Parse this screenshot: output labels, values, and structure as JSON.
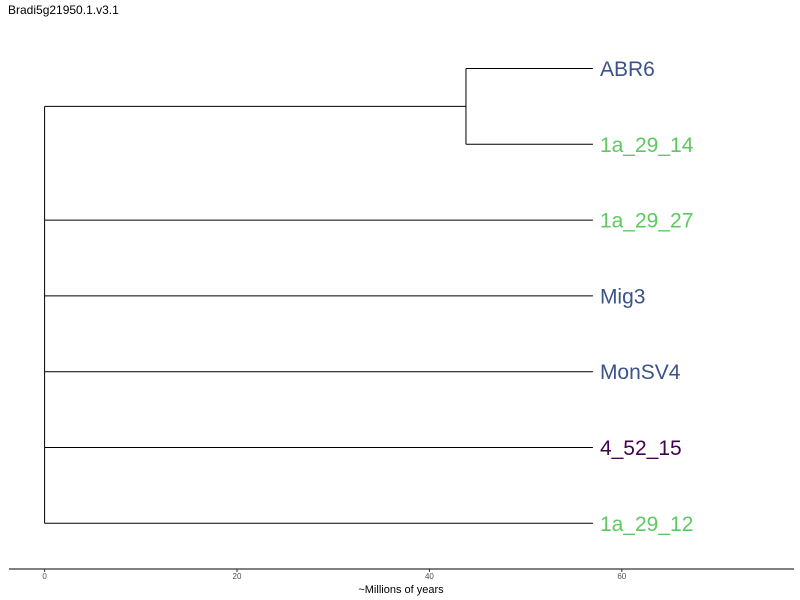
{
  "title": "Bradi5g21950.1.v3.1",
  "axis": {
    "label": "~Millions of years",
    "ticks": [
      0,
      20,
      40,
      60
    ],
    "range": [
      -3.7,
      77.9
    ]
  },
  "tree": {
    "tips": [
      {
        "label": "ABR6",
        "color": "#3b528b"
      },
      {
        "label": "1a_29_14",
        "color": "#5ec962"
      },
      {
        "label": "1a_29_27",
        "color": "#5ec962"
      },
      {
        "label": "Mig3",
        "color": "#3b528b"
      },
      {
        "label": "MonSV4",
        "color": "#3b528b"
      },
      {
        "label": "4_52_15",
        "color": "#440154"
      },
      {
        "label": "1a_29_12",
        "color": "#5ec962"
      }
    ],
    "tip_depth": 57.0,
    "root_depth": 0,
    "clades": [
      {
        "members": [
          "ABR6",
          "1a_29_14"
        ],
        "node_depth": 43.8
      }
    ]
  }
}
